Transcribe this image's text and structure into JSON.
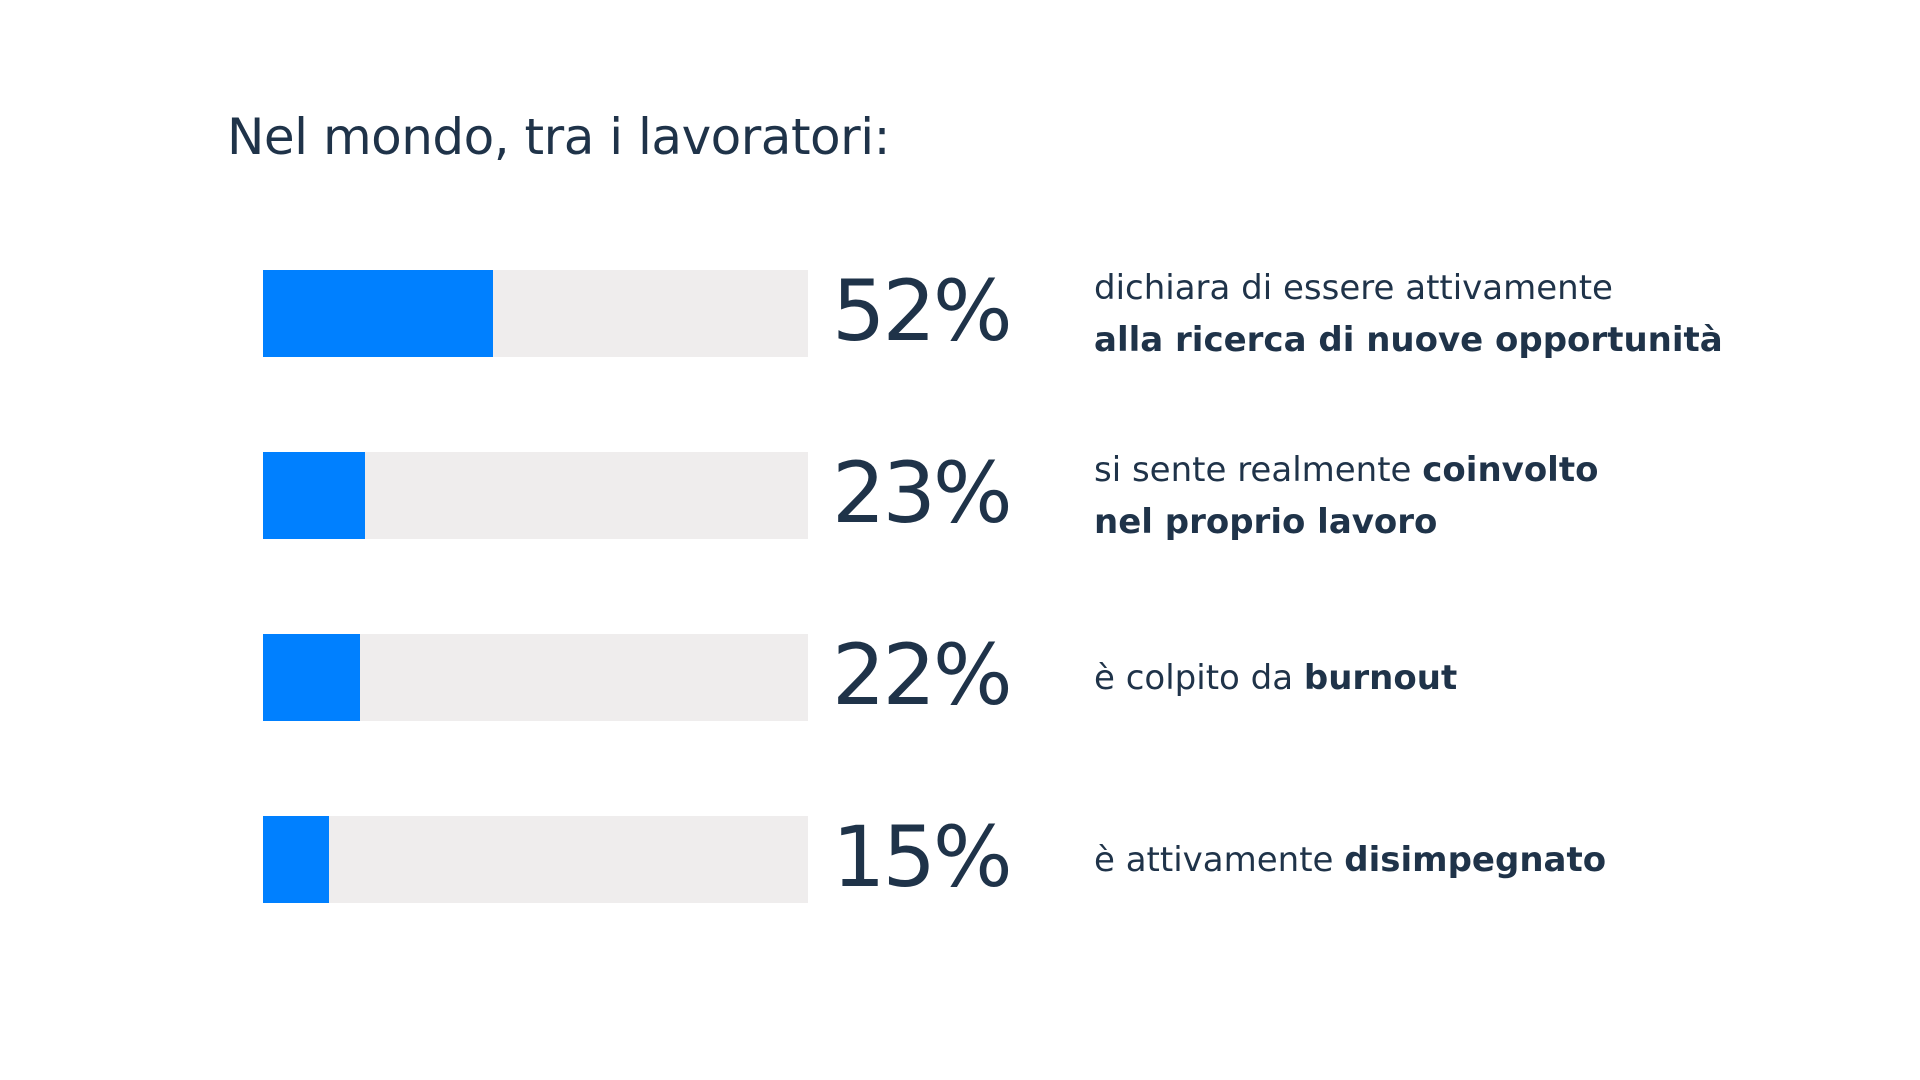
{
  "title": "Nel mondo, tra i lavoratori:",
  "colors": {
    "fill": "#0080ff",
    "track": "#efeded",
    "text": "#1f3349"
  },
  "rows": [
    {
      "percent_label": "52%",
      "value": 52,
      "line1": [
        {
          "text": "dichiara di essere attivamente",
          "bold": false
        }
      ],
      "line2": [
        {
          "text": "alla ricerca di nuove opportunità",
          "bold": true
        }
      ]
    },
    {
      "percent_label": "23%",
      "value": 23,
      "line1": [
        {
          "text": "si sente realmente ",
          "bold": false
        },
        {
          "text": "coinvolto",
          "bold": true
        }
      ],
      "line2": [
        {
          "text": "nel proprio lavoro",
          "bold": true
        }
      ]
    },
    {
      "percent_label": "22%",
      "value": 22,
      "line1": [
        {
          "text": "è colpito da ",
          "bold": false
        },
        {
          "text": "burnout",
          "bold": true
        }
      ],
      "line2": []
    },
    {
      "percent_label": "15%",
      "value": 15,
      "line1": [
        {
          "text": "è attivamente ",
          "bold": false
        },
        {
          "text": "disimpegnato",
          "bold": true
        }
      ],
      "line2": []
    }
  ],
  "chart_data": {
    "type": "bar",
    "orientation": "horizontal",
    "categories": [
      "dichiara di essere attivamente alla ricerca di nuove opportunità",
      "si sente realmente coinvolto nel proprio lavoro",
      "è colpito da burnout",
      "è attivamente disimpegnato"
    ],
    "values": [
      52,
      23,
      22,
      15
    ],
    "title": "Nel mondo, tra i lavoratori:",
    "xlabel": "",
    "ylabel": "",
    "xlim": [
      0,
      100
    ],
    "grid": false,
    "legend": "none"
  }
}
